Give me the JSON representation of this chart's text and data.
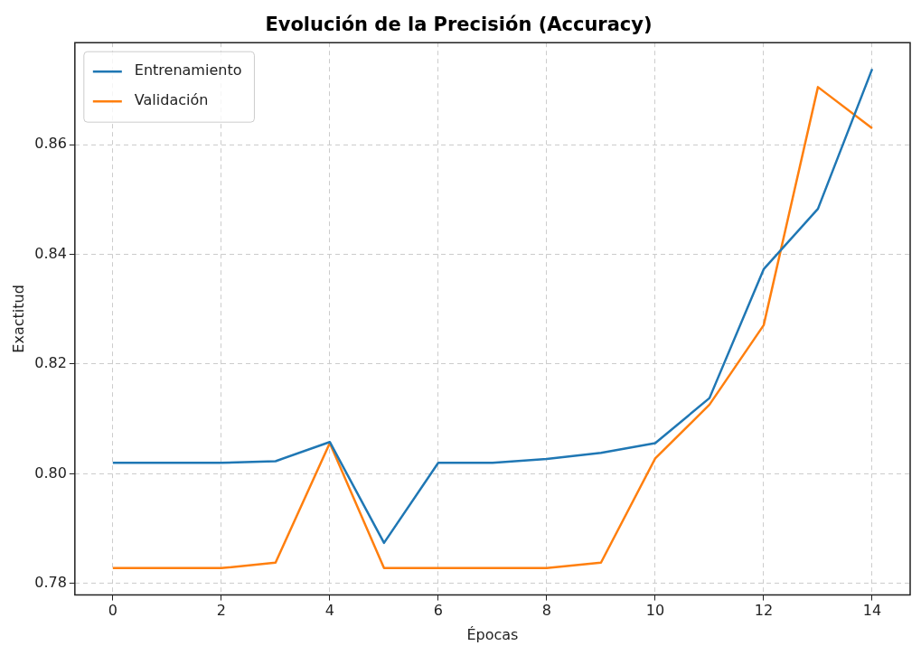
{
  "chart_data": {
    "type": "line",
    "title": "Evolución de la Precisión (Accuracy)",
    "xlabel": "Épocas",
    "ylabel": "Exactitud",
    "x": [
      0,
      1,
      2,
      3,
      4,
      5,
      6,
      7,
      8,
      9,
      10,
      11,
      12,
      13,
      14
    ],
    "series": [
      {
        "name": "Entrenamiento",
        "color": "#1f77b4",
        "values": [
          0.802,
          0.802,
          0.802,
          0.8023,
          0.8058,
          0.7874,
          0.802,
          0.802,
          0.8027,
          0.8038,
          0.8056,
          0.8138,
          0.8373,
          0.8483,
          0.8738
        ]
      },
      {
        "name": "Validación",
        "color": "#ff7f0e",
        "values": [
          0.7828,
          0.7828,
          0.7828,
          0.7838,
          0.8056,
          0.7828,
          0.7828,
          0.7828,
          0.7828,
          0.7838,
          0.8028,
          0.8126,
          0.8271,
          0.8705,
          0.863
        ]
      }
    ],
    "xlim": [
      -0.7,
      14.7
    ],
    "xticks": [
      0,
      2,
      4,
      6,
      8,
      10,
      12,
      14
    ],
    "ylim": [
      0.7779,
      0.8786
    ],
    "yticks": [
      {
        "value": 0.78,
        "label": "0.78"
      },
      {
        "value": 0.8,
        "label": "0.80"
      },
      {
        "value": 0.82,
        "label": "0.82"
      },
      {
        "value": 0.84,
        "label": "0.84"
      },
      {
        "value": 0.86,
        "label": "0.86"
      }
    ],
    "grid": true,
    "legend": "top left",
    "marker": "none",
    "line_style": "solid"
  }
}
